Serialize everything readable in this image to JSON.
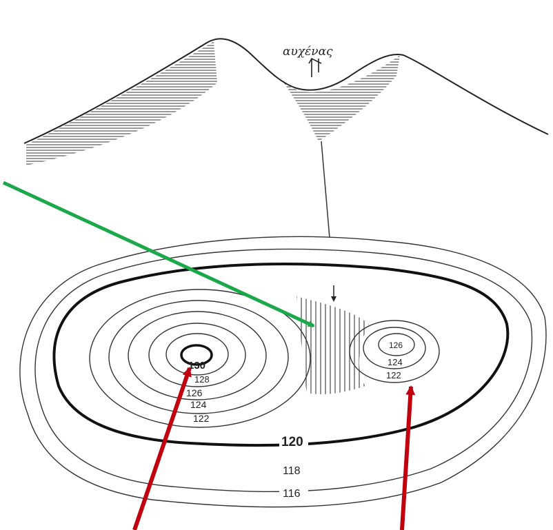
{
  "profile": {
    "saddle_label": "αυχένας"
  },
  "contours": {
    "left_peak_labels": [
      "130",
      "128",
      "126",
      "124",
      "122"
    ],
    "right_peak_labels": [
      "126",
      "124",
      "122"
    ],
    "outer_labels": [
      "120",
      "118",
      "116"
    ]
  },
  "colors": {
    "ink": "#222222",
    "hatch": "#555555",
    "green_arrow": "#1aa84b",
    "red_arrow": "#c0000f"
  },
  "icons": {
    "saddle_marker": "downward-arrow-icon"
  }
}
